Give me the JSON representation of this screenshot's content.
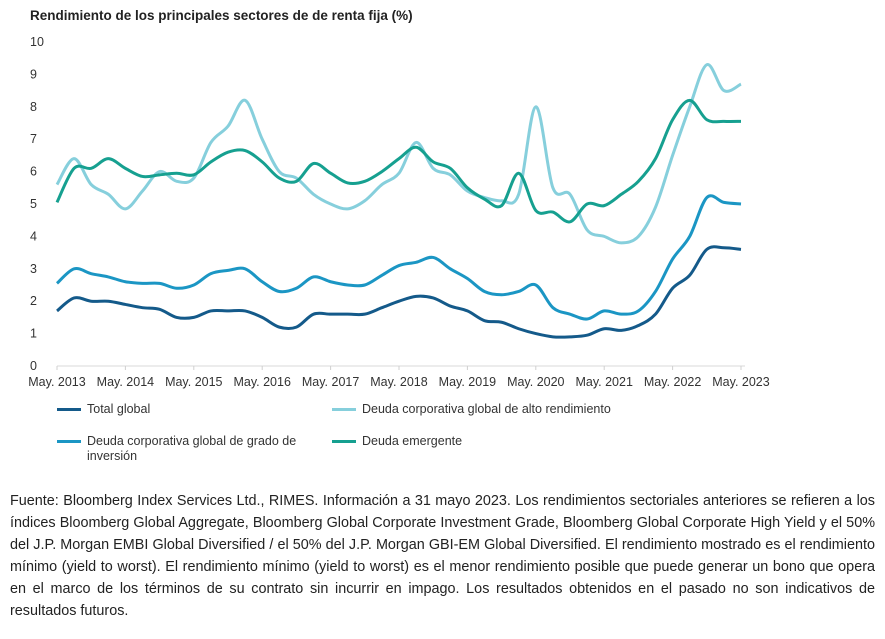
{
  "chart_data": {
    "type": "line",
    "title": "Rendimiento de los principales sectores de de renta fija (%)",
    "xlabel": "",
    "ylabel": "",
    "ylim": [
      0,
      10
    ],
    "yticks": [
      "0",
      "1",
      "2",
      "3",
      "4",
      "5",
      "6",
      "7",
      "8",
      "9",
      "10"
    ],
    "xticks": [
      "May. 2013",
      "May. 2014",
      "May. 2015",
      "May. 2016",
      "May. 2017",
      "May. 2018",
      "May. 2019",
      "May. 2020",
      "May. 2021",
      "May. 2022",
      "May. 2023"
    ],
    "x_start": 2013.42,
    "x_step": 0.25,
    "x_range": [
      2013.42,
      2023.42
    ],
    "grid": false,
    "legend_position": "bottom",
    "series": [
      {
        "name": "Total global",
        "color": "#145a8a",
        "values": [
          1.7,
          2.1,
          2.0,
          2.0,
          1.9,
          1.8,
          1.75,
          1.5,
          1.5,
          1.7,
          1.7,
          1.7,
          1.5,
          1.2,
          1.2,
          1.6,
          1.6,
          1.6,
          1.6,
          1.8,
          2.0,
          2.15,
          2.1,
          1.85,
          1.7,
          1.4,
          1.35,
          1.15,
          1.0,
          0.9,
          0.9,
          0.95,
          1.15,
          1.1,
          1.25,
          1.6,
          2.4,
          2.8,
          3.6,
          3.65,
          3.6
        ]
      },
      {
        "name": "Deuda corporativa global de alto rendimiento",
        "color": "#86cfdc",
        "values": [
          5.6,
          6.4,
          5.6,
          5.3,
          4.85,
          5.4,
          6.0,
          5.7,
          5.8,
          6.9,
          7.4,
          8.2,
          7.0,
          6.0,
          5.8,
          5.3,
          5.0,
          4.85,
          5.1,
          5.6,
          5.95,
          6.9,
          6.1,
          5.9,
          5.4,
          5.2,
          5.1,
          5.3,
          8.0,
          5.5,
          5.3,
          4.2,
          4.0,
          3.8,
          4.0,
          4.9,
          6.5,
          8.0,
          9.3,
          8.5,
          8.7
        ]
      },
      {
        "name": "Deuda corporativa global de grado de inversión",
        "color": "#1b96c4",
        "values": [
          2.55,
          3.0,
          2.85,
          2.75,
          2.6,
          2.55,
          2.55,
          2.4,
          2.5,
          2.85,
          2.95,
          3.0,
          2.6,
          2.3,
          2.4,
          2.75,
          2.6,
          2.5,
          2.5,
          2.8,
          3.1,
          3.2,
          3.35,
          3.0,
          2.7,
          2.3,
          2.2,
          2.3,
          2.5,
          1.8,
          1.6,
          1.45,
          1.7,
          1.6,
          1.7,
          2.3,
          3.3,
          4.0,
          5.2,
          5.05,
          5.0
        ]
      },
      {
        "name": "Deuda emergente",
        "color": "#16a090",
        "values": [
          5.05,
          6.1,
          6.1,
          6.4,
          6.1,
          5.85,
          5.9,
          5.95,
          5.9,
          6.3,
          6.6,
          6.65,
          6.3,
          5.8,
          5.7,
          6.25,
          5.95,
          5.65,
          5.7,
          6.0,
          6.4,
          6.75,
          6.3,
          6.1,
          5.5,
          5.15,
          4.95,
          5.95,
          4.8,
          4.75,
          4.45,
          5.0,
          4.95,
          5.3,
          5.7,
          6.4,
          7.6,
          8.2,
          7.6,
          7.55,
          7.55
        ]
      }
    ]
  },
  "footnote": "Fuente: Bloomberg Index Services Ltd., RIMES. Información a 31 mayo 2023. Los rendimientos sectoriales anteriores se refieren a los índices Bloomberg Global Aggregate, Bloomberg Global Corporate Investment Grade, Bloomberg Global Corporate High Yield y el 50% del J.P. Morgan EMBI Global Diversified / el 50% del J.P. Morgan GBI-EM Global Diversified. El rendimiento mostrado es el rendimiento mínimo (yield to worst). El rendimiento mínimo (yield to worst) es el menor rendimiento posible que puede generar un bono que opera en el marco de los términos de su contrato sin incurrir en impago. Los resultados obtenidos en el pasado no son indicativos de resultados futuros."
}
